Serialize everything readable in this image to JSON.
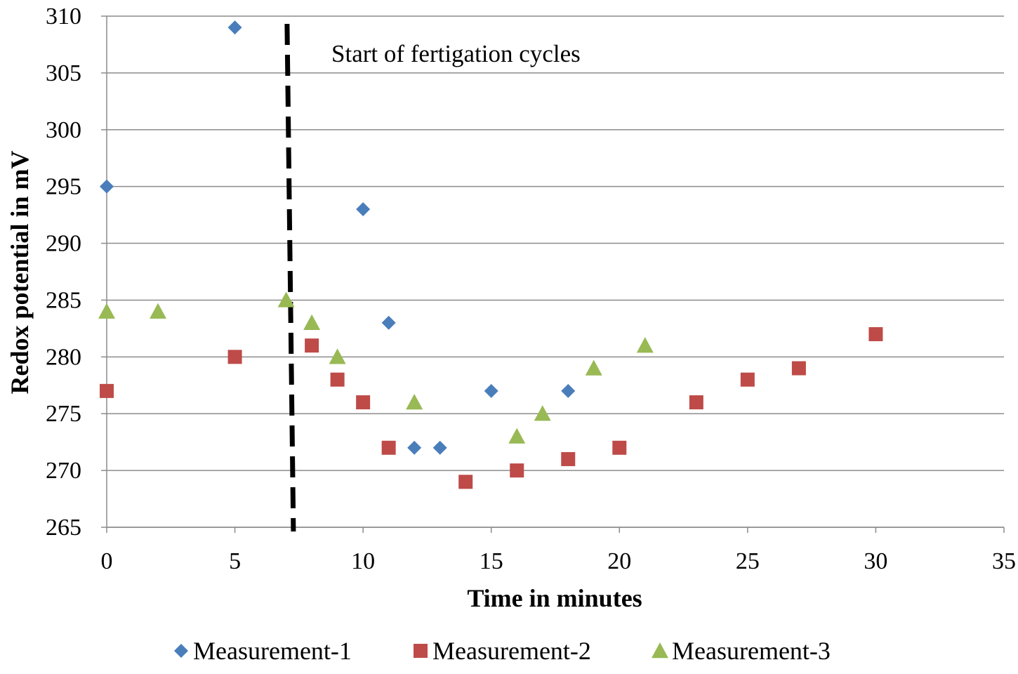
{
  "chart_data": {
    "type": "scatter",
    "title": "",
    "xlabel": "Time in minutes",
    "ylabel": "Redox potential in mV",
    "xlim": [
      0,
      35
    ],
    "ylim": [
      265,
      310
    ],
    "xticks": [
      0,
      5,
      10,
      15,
      20,
      25,
      30,
      35
    ],
    "yticks": [
      265,
      270,
      275,
      280,
      285,
      290,
      295,
      300,
      305,
      310
    ],
    "grid": "horizontal",
    "legend_position": "bottom",
    "annotation": {
      "text": "Start of  fertigation cycles",
      "marker_line_x": 7.2,
      "style": "dashed"
    },
    "series": [
      {
        "name": "Measurement-1",
        "marker": "diamond",
        "color": "#4a7ebb",
        "points": [
          [
            0,
            295
          ],
          [
            5,
            309
          ],
          [
            10,
            293
          ],
          [
            11,
            283
          ],
          [
            12,
            272
          ],
          [
            13,
            272
          ],
          [
            15,
            277
          ],
          [
            18,
            277
          ]
        ]
      },
      {
        "name": "Measurement-2",
        "marker": "square",
        "color": "#be4b48",
        "points": [
          [
            0,
            277
          ],
          [
            5,
            280
          ],
          [
            8,
            281
          ],
          [
            9,
            278
          ],
          [
            10,
            276
          ],
          [
            11,
            272
          ],
          [
            14,
            269
          ],
          [
            16,
            270
          ],
          [
            18,
            271
          ],
          [
            20,
            272
          ],
          [
            23,
            276
          ],
          [
            25,
            278
          ],
          [
            27,
            279
          ],
          [
            30,
            282
          ]
        ]
      },
      {
        "name": "Measurement-3",
        "marker": "triangle",
        "color": "#98b954",
        "points": [
          [
            0,
            284
          ],
          [
            2,
            284
          ],
          [
            7,
            285
          ],
          [
            8,
            283
          ],
          [
            9,
            280
          ],
          [
            12,
            276
          ],
          [
            16,
            273
          ],
          [
            17,
            275
          ],
          [
            19,
            279
          ],
          [
            21,
            281
          ]
        ]
      }
    ]
  }
}
